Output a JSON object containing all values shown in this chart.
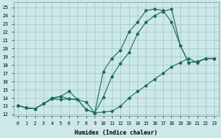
{
  "bg_color": "#cce8e8",
  "grid_color": "#aacccc",
  "line_color": "#1a6b5a",
  "xlim": [
    -0.5,
    23.5
  ],
  "ylim": [
    11.8,
    25.6
  ],
  "xticks": [
    0,
    1,
    2,
    3,
    4,
    5,
    6,
    7,
    8,
    9,
    10,
    11,
    12,
    13,
    14,
    15,
    16,
    17,
    18,
    19,
    20,
    21,
    22,
    23
  ],
  "yticks": [
    12,
    13,
    14,
    15,
    16,
    17,
    18,
    19,
    20,
    21,
    22,
    23,
    24,
    25
  ],
  "xlabel": "Humidex (Indice chaleur)",
  "line1_x": [
    0,
    1,
    2,
    3,
    4,
    5,
    6,
    7,
    8,
    9,
    10,
    11,
    12,
    13,
    14,
    15,
    16,
    17,
    18,
    19,
    20,
    21,
    22,
    23
  ],
  "line1_y": [
    13.1,
    12.8,
    12.7,
    13.3,
    13.9,
    13.8,
    13.9,
    13.8,
    12.6,
    12.2,
    12.3,
    12.4,
    13.0,
    14.0,
    14.8,
    15.5,
    16.3,
    17.0,
    17.8,
    18.3,
    18.8,
    18.3,
    18.8,
    18.8
  ],
  "line2_x": [
    0,
    1,
    2,
    3,
    4,
    5,
    6,
    7,
    8,
    9,
    10,
    11,
    12,
    13,
    14,
    15,
    16,
    17,
    18,
    19,
    20,
    21,
    22,
    23
  ],
  "line2_y": [
    13.1,
    12.8,
    12.7,
    13.3,
    14.0,
    14.2,
    13.9,
    13.8,
    12.6,
    12.2,
    17.2,
    18.8,
    19.8,
    22.0,
    23.2,
    24.6,
    24.8,
    24.6,
    23.2,
    20.4,
    18.3,
    18.4,
    18.8,
    18.8
  ],
  "line3_x": [
    0,
    1,
    2,
    3,
    4,
    5,
    6,
    7,
    8,
    9,
    10,
    11,
    12,
    13,
    14,
    15,
    16,
    17,
    18,
    19,
    20,
    21,
    22,
    23
  ],
  "line3_y": [
    13.1,
    12.8,
    12.7,
    13.3,
    13.9,
    14.2,
    14.8,
    13.8,
    13.5,
    12.2,
    14.1,
    16.6,
    18.2,
    19.5,
    21.8,
    23.2,
    24.0,
    24.5,
    24.8,
    20.4,
    18.3,
    18.4,
    18.8,
    18.8
  ]
}
